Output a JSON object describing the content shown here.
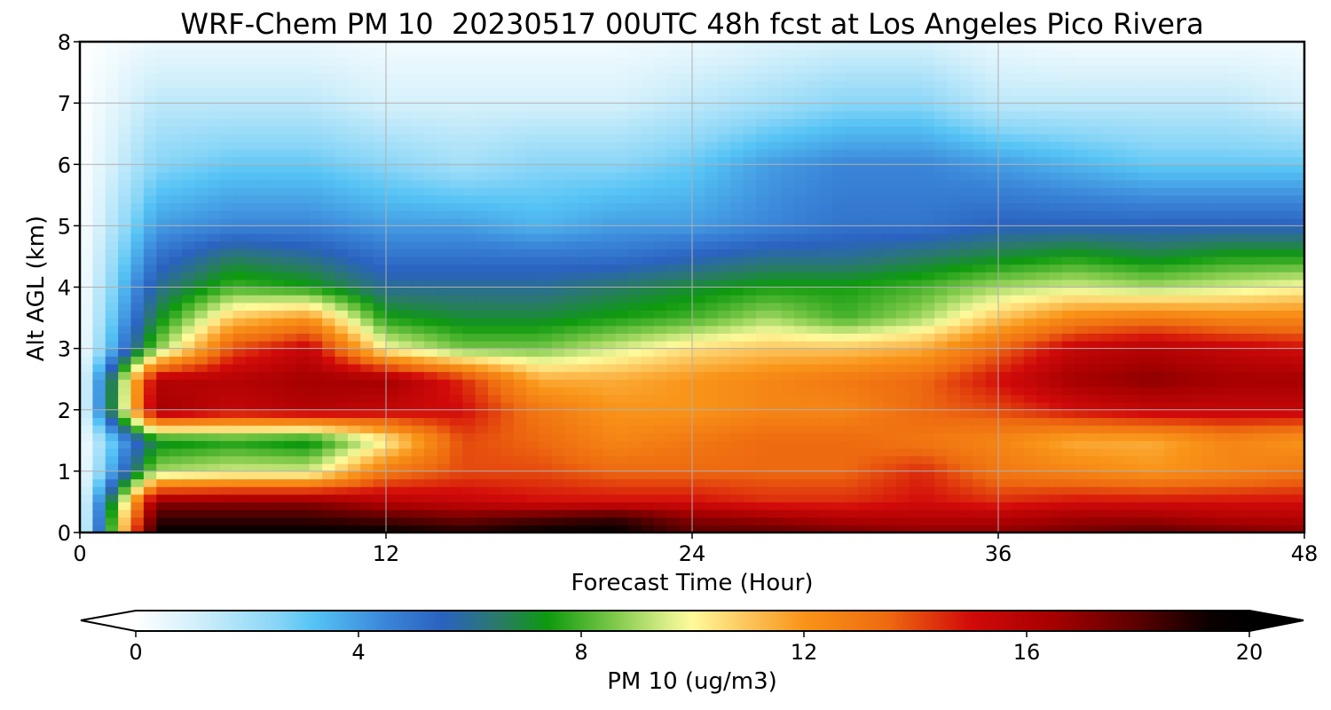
{
  "chart_data": {
    "type": "heatmap",
    "title": "WRF-Chem PM 10  20230517 00UTC 48h fcst at Los Angeles Pico Rivera",
    "xlabel": "Forecast Time (Hour)",
    "ylabel": "Alt AGL (km)",
    "xlim": [
      0,
      48
    ],
    "ylim": [
      0,
      8
    ],
    "x_ticks": [
      0,
      12,
      24,
      36,
      48
    ],
    "y_ticks": [
      0,
      1,
      2,
      3,
      4,
      5,
      6,
      7,
      8
    ],
    "grid": true,
    "x": [
      0,
      3,
      6,
      9,
      12,
      15,
      18,
      21,
      24,
      27,
      30,
      33,
      36,
      39,
      42,
      45,
      48
    ],
    "y": [
      0,
      0.25,
      0.5,
      1,
      1.5,
      2,
      2.5,
      3,
      3.5,
      4,
      4.5,
      5,
      6,
      7,
      8
    ],
    "values": [
      [
        0,
        19.5,
        19.5,
        19.5,
        19.5,
        19,
        19.5,
        19.5,
        18,
        18,
        17.5,
        17,
        17,
        17.5,
        18,
        17.5,
        17
      ],
      [
        0,
        18.5,
        18.5,
        18.5,
        18,
        17.5,
        18,
        18.5,
        17,
        16.5,
        16,
        16,
        16,
        16.5,
        16.5,
        16,
        16
      ],
      [
        0,
        17,
        17,
        17,
        16,
        15.5,
        15,
        15,
        15,
        14.5,
        14.5,
        15,
        14.5,
        15,
        15,
        15,
        15
      ],
      [
        0,
        9,
        9.5,
        9.5,
        13,
        14,
        14,
        13.5,
        13.5,
        13.5,
        13.5,
        14.5,
        13,
        12.5,
        12,
        12.5,
        13
      ],
      [
        0,
        7,
        7.5,
        7,
        10,
        14,
        13.5,
        12.5,
        13,
        13.5,
        13.5,
        13,
        12.5,
        11.5,
        11.5,
        12.5,
        12
      ],
      [
        0,
        16.5,
        15.5,
        16,
        15.5,
        15,
        13,
        12,
        12,
        12.5,
        12.5,
        13.5,
        14,
        15,
        15.5,
        15.5,
        15.5
      ],
      [
        0,
        16,
        16,
        16.5,
        16.5,
        14.5,
        11.5,
        11.5,
        12,
        12.5,
        13,
        13.5,
        15,
        16.5,
        17,
        16.5,
        16.5
      ],
      [
        0,
        8.5,
        14,
        15.5,
        10,
        8.5,
        8.5,
        9.5,
        10.5,
        11,
        11,
        11.5,
        13.5,
        15.5,
        16,
        15.5,
        15
      ],
      [
        0,
        7,
        11,
        12,
        7.5,
        7,
        7,
        7.5,
        8,
        9,
        8,
        9,
        11,
        12.5,
        13,
        12.5,
        12.5
      ],
      [
        0,
        6,
        8,
        7.5,
        6,
        6,
        6,
        6.5,
        7,
        7.5,
        7.5,
        8,
        9,
        9.5,
        9,
        9.5,
        10
      ],
      [
        0,
        5,
        6.5,
        6,
        5,
        5,
        5,
        5,
        5.5,
        6,
        6,
        6.5,
        7,
        7.5,
        7,
        7.5,
        7.5
      ],
      [
        0,
        4,
        4.5,
        4.5,
        4,
        4,
        3.5,
        4,
        4,
        4.5,
        5,
        5,
        5.5,
        5.5,
        5.5,
        5.5,
        5.5
      ],
      [
        0,
        2.5,
        3,
        3,
        2.5,
        2,
        2.5,
        2.5,
        3,
        4,
        4.5,
        4.5,
        4,
        3.5,
        3,
        3,
        3
      ],
      [
        0,
        1.5,
        1.5,
        1.5,
        1,
        1,
        1,
        1,
        1.5,
        2,
        2.5,
        2.5,
        1.5,
        1.5,
        1.5,
        1.5,
        1
      ],
      [
        0,
        0.5,
        0.5,
        0.5,
        0.3,
        0.3,
        0.3,
        0.3,
        0.5,
        0.8,
        1,
        1,
        0.5,
        0.3,
        0.3,
        0.3,
        0.3
      ]
    ],
    "colorbar": {
      "label": "PM 10  (ug/m3)",
      "range": [
        0,
        20
      ],
      "ticks": [
        0,
        4,
        8,
        12,
        16,
        20
      ],
      "extend": "both",
      "placement": "bottom",
      "colors": [
        {
          "v": 0,
          "c": "#ffffff"
        },
        {
          "v": 1,
          "c": "#d6f1fb"
        },
        {
          "v": 2.5,
          "c": "#8ad6f7"
        },
        {
          "v": 3.2,
          "c": "#55c3f5"
        },
        {
          "v": 4.5,
          "c": "#3a85d8"
        },
        {
          "v": 5.5,
          "c": "#2a62c0"
        },
        {
          "v": 6.5,
          "c": "#2a7a6a"
        },
        {
          "v": 7.4,
          "c": "#0e9a0e"
        },
        {
          "v": 8.6,
          "c": "#7fc94a"
        },
        {
          "v": 9.6,
          "c": "#dff08c"
        },
        {
          "v": 10,
          "c": "#fff99a"
        },
        {
          "v": 11,
          "c": "#fcc45a"
        },
        {
          "v": 12,
          "c": "#f99418"
        },
        {
          "v": 13.5,
          "c": "#ee6a10"
        },
        {
          "v": 15,
          "c": "#d20a0a"
        },
        {
          "v": 16.5,
          "c": "#a50000"
        },
        {
          "v": 18,
          "c": "#5a0000"
        },
        {
          "v": 19.3,
          "c": "#0a0000"
        },
        {
          "v": 20,
          "c": "#000000"
        }
      ]
    }
  }
}
